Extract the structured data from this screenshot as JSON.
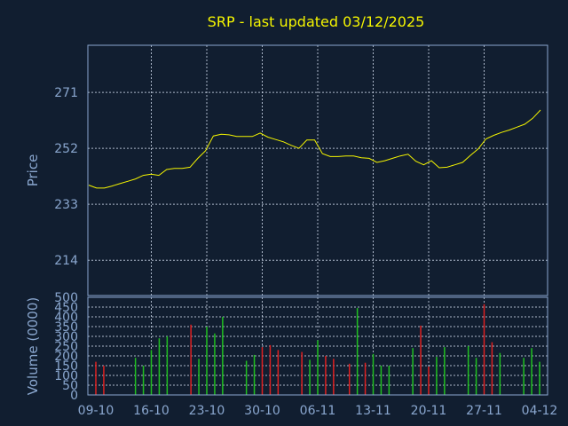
{
  "chart_data": [
    {
      "type": "line",
      "title": "SRP - last updated 03/12/2025",
      "ylabel": "Price",
      "ylim": [
        202,
        287
      ],
      "yticks": [
        214,
        233,
        252,
        271
      ],
      "xtick_labels": [
        "09-10",
        "16-10",
        "23-10",
        "30-10",
        "06-11",
        "13-11",
        "20-11",
        "27-11",
        "04-12"
      ],
      "series": [
        {
          "values": [
            239.5,
            238.5,
            238.5,
            239.2,
            240.0,
            240.8,
            241.6,
            242.8,
            243.2,
            242.8,
            244.8,
            245.2,
            245.2,
            245.6,
            248.6,
            251.2,
            256.2,
            256.8,
            256.6,
            256.0,
            256.0,
            256.0,
            257.2,
            255.8,
            255.0,
            254.2,
            253.0,
            252.0,
            254.8,
            254.8,
            250.2,
            249.2,
            249.2,
            249.4,
            249.4,
            248.8,
            248.6,
            247.2,
            247.8,
            248.6,
            249.4,
            250.0,
            247.6,
            246.4,
            247.8,
            245.4,
            245.6,
            246.4,
            247.2,
            249.6,
            251.8,
            255.2,
            256.4,
            257.4,
            258.2,
            259.2,
            260.2,
            262.2,
            265.0
          ]
        }
      ]
    },
    {
      "type": "bar",
      "ylabel": "Volume (0000)",
      "ylim": [
        0,
        500
      ],
      "yticks": [
        0,
        50,
        100,
        150,
        200,
        250,
        300,
        350,
        400,
        450,
        500
      ],
      "bars": [
        {
          "value": 170,
          "color": "#e02020"
        },
        {
          "value": 150,
          "color": "#e02020"
        },
        {
          "value": 0,
          "color": "#20c020"
        },
        {
          "value": 0,
          "color": "#20c020"
        },
        {
          "value": 0,
          "color": "#20c020"
        },
        {
          "value": 190,
          "color": "#20c020"
        },
        {
          "value": 150,
          "color": "#20c020"
        },
        {
          "value": 230,
          "color": "#20c020"
        },
        {
          "value": 290,
          "color": "#20c020"
        },
        {
          "value": 300,
          "color": "#20c020"
        },
        {
          "value": 0,
          "color": "#20c020"
        },
        {
          "value": 0,
          "color": "#20c020"
        },
        {
          "value": 360,
          "color": "#e02020"
        },
        {
          "value": 185,
          "color": "#20c020"
        },
        {
          "value": 350,
          "color": "#20c020"
        },
        {
          "value": 315,
          "color": "#20c020"
        },
        {
          "value": 400,
          "color": "#20c020"
        },
        {
          "value": 0,
          "color": "#20c020"
        },
        {
          "value": 0,
          "color": "#20c020"
        },
        {
          "value": 175,
          "color": "#20c020"
        },
        {
          "value": 205,
          "color": "#20c020"
        },
        {
          "value": 245,
          "color": "#e02020"
        },
        {
          "value": 255,
          "color": "#e02020"
        },
        {
          "value": 230,
          "color": "#e02020"
        },
        {
          "value": 0,
          "color": "#20c020"
        },
        {
          "value": 0,
          "color": "#20c020"
        },
        {
          "value": 220,
          "color": "#e02020"
        },
        {
          "value": 180,
          "color": "#20c020"
        },
        {
          "value": 280,
          "color": "#20c020"
        },
        {
          "value": 200,
          "color": "#e02020"
        },
        {
          "value": 185,
          "color": "#e02020"
        },
        {
          "value": 0,
          "color": "#20c020"
        },
        {
          "value": 160,
          "color": "#e02020"
        },
        {
          "value": 445,
          "color": "#20c020"
        },
        {
          "value": 165,
          "color": "#e02020"
        },
        {
          "value": 210,
          "color": "#20c020"
        },
        {
          "value": 150,
          "color": "#20c020"
        },
        {
          "value": 150,
          "color": "#20c020"
        },
        {
          "value": 0,
          "color": "#20c020"
        },
        {
          "value": 0,
          "color": "#20c020"
        },
        {
          "value": 240,
          "color": "#20c020"
        },
        {
          "value": 355,
          "color": "#e02020"
        },
        {
          "value": 145,
          "color": "#e02020"
        },
        {
          "value": 195,
          "color": "#20c020"
        },
        {
          "value": 245,
          "color": "#20c020"
        },
        {
          "value": 0,
          "color": "#20c020"
        },
        {
          "value": 0,
          "color": "#20c020"
        },
        {
          "value": 250,
          "color": "#20c020"
        },
        {
          "value": 190,
          "color": "#20c020"
        },
        {
          "value": 465,
          "color": "#e02020"
        },
        {
          "value": 270,
          "color": "#e02020"
        },
        {
          "value": 215,
          "color": "#20c020"
        },
        {
          "value": 0,
          "color": "#20c020"
        },
        {
          "value": 0,
          "color": "#20c020"
        },
        {
          "value": 190,
          "color": "#20c020"
        },
        {
          "value": 240,
          "color": "#20c020"
        },
        {
          "value": 170,
          "color": "#20c020"
        }
      ]
    }
  ]
}
